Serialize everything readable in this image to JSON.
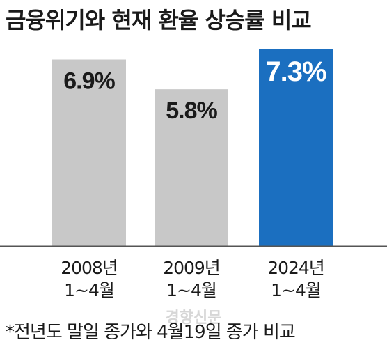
{
  "chart_data": {
    "type": "bar",
    "title": "금융위기와 현재 환율 상승률 비교",
    "categories": [
      [
        "2008년",
        "1~4월"
      ],
      [
        "2009년",
        "1~4월"
      ],
      [
        "2024년",
        "1~4월"
      ]
    ],
    "values": [
      6.9,
      5.8,
      7.3
    ],
    "value_labels": [
      "6.9%",
      "5.8%",
      "7.3%"
    ],
    "ylim": [
      0,
      7.3
    ],
    "grid": false,
    "colors": {
      "default_bar": "#c8c8c8",
      "highlight_bar": "#1b6fc0",
      "default_label": "#1a1a1a",
      "highlight_label": "#ffffff",
      "baseline": "#555555"
    },
    "highlight_index": 2
  },
  "footnote": "*전년도 말일 종가와 4월19일 종가 비교",
  "watermark": "경향신문"
}
